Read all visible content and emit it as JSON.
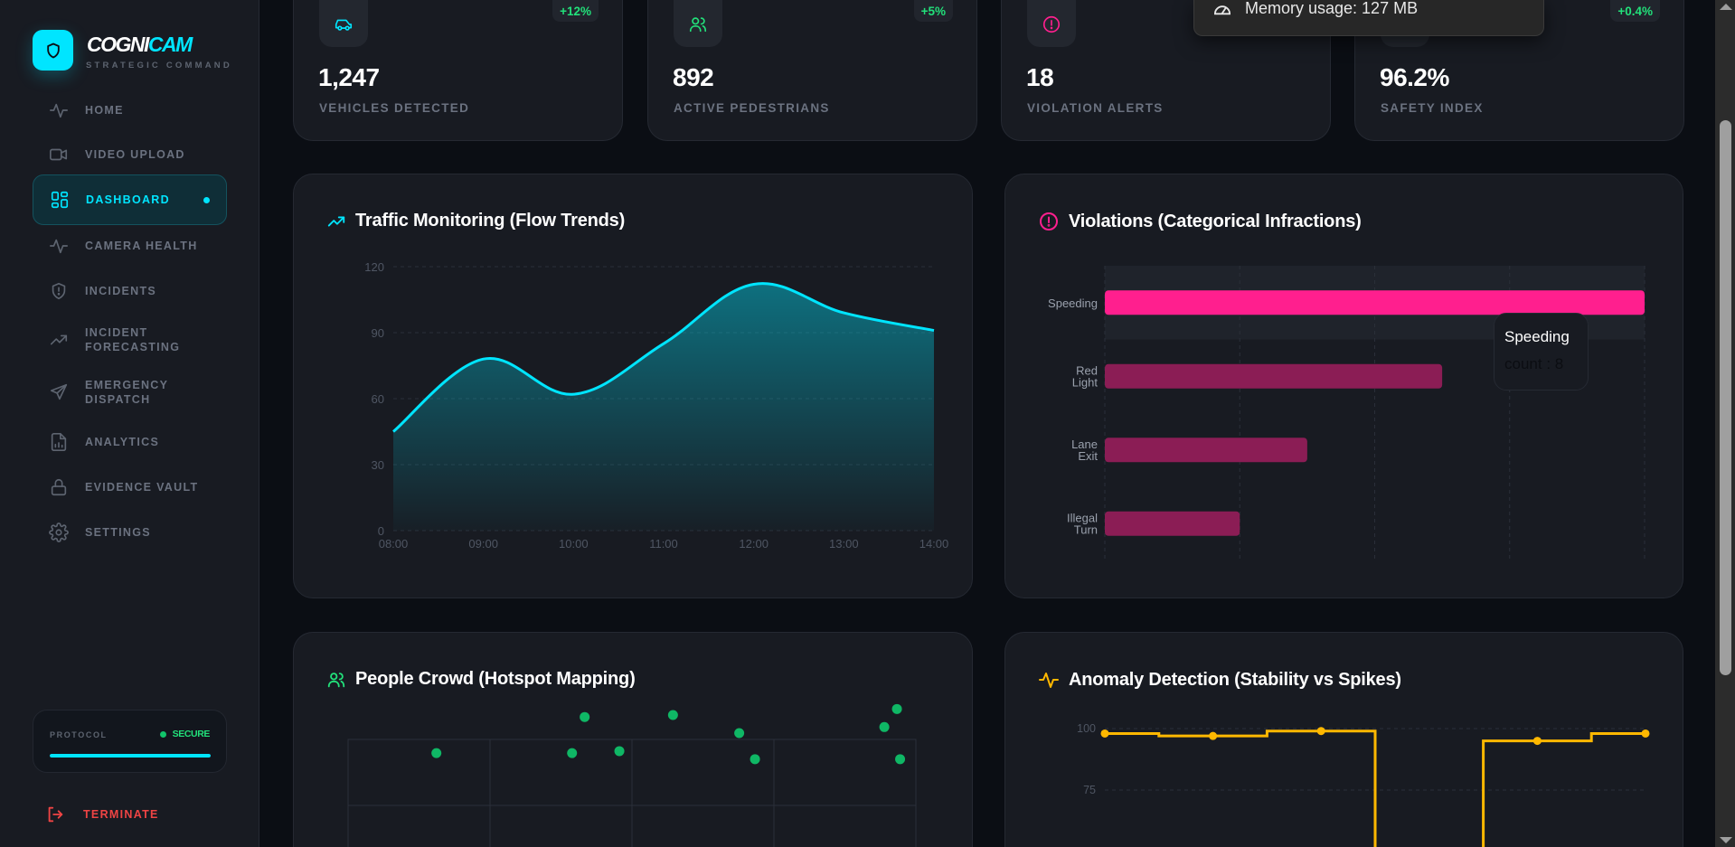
{
  "brand": {
    "name_part1": "COGNI",
    "name_part2": "CAM",
    "subtitle": "STRATEGIC COMMAND"
  },
  "sidebar": {
    "items": [
      {
        "label": "HOME",
        "icon": "activity-icon",
        "active": false
      },
      {
        "label": "VIDEO UPLOAD",
        "icon": "video-icon",
        "active": false
      },
      {
        "label": "DASHBOARD",
        "icon": "dashboard-icon",
        "active": true
      },
      {
        "label": "CAMERA HEALTH",
        "icon": "activity-icon",
        "active": false
      },
      {
        "label": "INCIDENTS",
        "icon": "shield-alert-icon",
        "active": false
      },
      {
        "label": "INCIDENT FORECASTING",
        "icon": "trending-up-icon",
        "active": false
      },
      {
        "label": "EMERGENCY DISPATCH",
        "icon": "send-icon",
        "active": false
      },
      {
        "label": "ANALYTICS",
        "icon": "file-chart-icon",
        "active": false
      },
      {
        "label": "EVIDENCE VAULT",
        "icon": "lock-icon",
        "active": false
      },
      {
        "label": "SETTINGS",
        "icon": "gear-icon",
        "active": false
      }
    ],
    "protocol": {
      "label": "PROTOCOL",
      "status": "SECURE",
      "progress_percent": 100
    },
    "terminate_label": "TERMINATE"
  },
  "stats": [
    {
      "value": "1,247",
      "label": "VEHICLES DETECTED",
      "change": "+12%",
      "icon": "car-icon",
      "color": "#00e5ff"
    },
    {
      "value": "892",
      "label": "ACTIVE PEDESTRIANS",
      "change": "+5%",
      "icon": "users-icon",
      "color": "#22e07a"
    },
    {
      "value": "18",
      "label": "VIOLATION ALERTS",
      "change": "",
      "icon": "alert-circle-icon",
      "color": "#ff1f8e"
    },
    {
      "value": "96.2%",
      "label": "SAFETY INDEX",
      "change": "+0.4%",
      "icon": "shield-icon",
      "color": "#00e5ff"
    }
  ],
  "memory_tooltip": {
    "text": "Memory usage: 127 MB",
    "icon": "gauge-icon"
  },
  "colors": {
    "accent": "#00e5ff",
    "success": "#22e07a",
    "violation": "#ff1f8e",
    "violation_dim": "#8b1d55",
    "anomaly": "#ffb800",
    "crowd": "#0fb765",
    "danger": "#ef4444"
  },
  "chart_data": [
    {
      "type": "area",
      "title": "Traffic Monitoring (Flow Trends)",
      "xlabel": "",
      "ylabel": "",
      "categories": [
        "08:00",
        "09:00",
        "10:00",
        "11:00",
        "12:00",
        "13:00",
        "14:00"
      ],
      "values": [
        45,
        78,
        62,
        85,
        112,
        99,
        91
      ],
      "ylim": [
        0,
        120
      ],
      "yticks": [
        0,
        30,
        60,
        90,
        120
      ],
      "grid": true
    },
    {
      "type": "bar",
      "orientation": "horizontal",
      "title": "Violations (Categorical Infractions)",
      "categories": [
        "Speeding",
        "Red Light",
        "Lane Exit",
        "Illegal Turn"
      ],
      "values": [
        8,
        5,
        3,
        2
      ],
      "xlim": [
        0,
        8
      ],
      "series_name": "count",
      "highlighted": "Speeding",
      "tooltip": {
        "title": "Speeding",
        "label": "count",
        "value": "8"
      },
      "grid": true
    },
    {
      "type": "scatter",
      "title": "People Crowd (Hotspot Mapping)",
      "points": [
        {
          "x": 28,
          "y": 72
        },
        {
          "x": 75,
          "y": 90
        },
        {
          "x": 71,
          "y": 72
        },
        {
          "x": 86,
          "y": 73
        },
        {
          "x": 103,
          "y": 91
        },
        {
          "x": 124,
          "y": 82
        },
        {
          "x": 129,
          "y": 69
        },
        {
          "x": 174,
          "y": 94
        },
        {
          "x": 170,
          "y": 85
        },
        {
          "x": 175,
          "y": 69
        }
      ],
      "xlim": [
        0,
        180
      ],
      "ylim": [
        0,
        100
      ],
      "grid": true
    },
    {
      "type": "line",
      "step": true,
      "title": "Anomaly Detection (Stability vs Spikes)",
      "x": [
        1,
        2,
        3,
        4,
        5,
        6
      ],
      "values": [
        98,
        97,
        99,
        20,
        95,
        98
      ],
      "ylim": [
        0,
        100
      ],
      "yticks": [
        75,
        100
      ],
      "grid": true
    }
  ]
}
